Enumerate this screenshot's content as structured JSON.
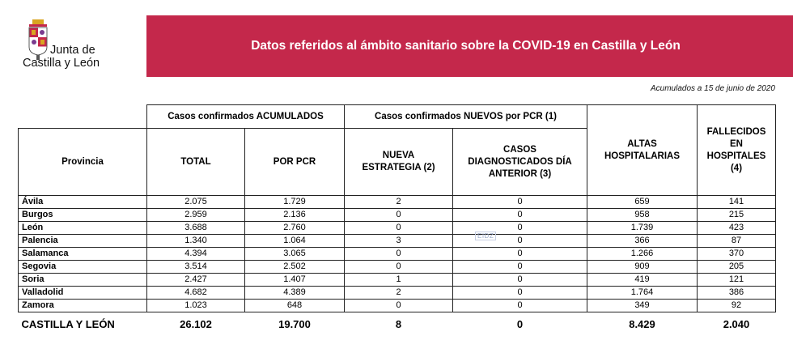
{
  "header": {
    "logo_text_line1": "Junta de",
    "logo_text_line2": "Castilla y León",
    "title": "Datos referidos al ámbito sanitario sobre la COVID-19 en Castilla y León",
    "note": "Acumulados a 15 de junio de 2020"
  },
  "table": {
    "group_headers": {
      "acumulados": "Casos confirmados ACUMULADOS",
      "nuevos": "Casos confirmados NUEVOS por PCR (1)"
    },
    "columns": {
      "provincia": "Provincia",
      "total": "TOTAL",
      "por_pcr": "POR PCR",
      "nueva_estrategia": "NUEVA ESTRATEGIA (2)",
      "casos_diag": "CASOS DIAGNOSTICADOS DÍA ANTERIOR (3)",
      "altas": "ALTAS HOSPITALARIAS",
      "fallecidos": "FALLECIDOS EN HOSPITALES (4)"
    },
    "rows": [
      {
        "provincia": "Ávila",
        "total": "2.075",
        "por_pcr": "1.729",
        "nueva": "2",
        "diag": "0",
        "altas": "659",
        "fallecidos": "141"
      },
      {
        "provincia": "Burgos",
        "total": "2.959",
        "por_pcr": "2.136",
        "nueva": "0",
        "diag": "0",
        "altas": "958",
        "fallecidos": "215"
      },
      {
        "provincia": "León",
        "total": "3.688",
        "por_pcr": "2.760",
        "nueva": "0",
        "diag": "0",
        "altas": "1.739",
        "fallecidos": "423"
      },
      {
        "provincia": "Palencia",
        "total": "1.340",
        "por_pcr": "1.064",
        "nueva": "3",
        "diag": "0",
        "altas": "366",
        "fallecidos": "87"
      },
      {
        "provincia": "Salamanca",
        "total": "4.394",
        "por_pcr": "3.065",
        "nueva": "0",
        "diag": "0",
        "altas": "1.266",
        "fallecidos": "370"
      },
      {
        "provincia": "Segovia",
        "total": "3.514",
        "por_pcr": "2.502",
        "nueva": "0",
        "diag": "0",
        "altas": "909",
        "fallecidos": "205"
      },
      {
        "provincia": "Soria",
        "total": "2.427",
        "por_pcr": "1.407",
        "nueva": "1",
        "diag": "0",
        "altas": "419",
        "fallecidos": "121"
      },
      {
        "provincia": "Valladolid",
        "total": "4.682",
        "por_pcr": "4.389",
        "nueva": "2",
        "diag": "0",
        "altas": "1.764",
        "fallecidos": "386"
      },
      {
        "provincia": "Zamora",
        "total": "1.023",
        "por_pcr": "648",
        "nueva": "0",
        "diag": "0",
        "altas": "349",
        "fallecidos": "92"
      }
    ],
    "total_row": {
      "provincia": "CASTILLA Y LEÓN",
      "total": "26.102",
      "por_pcr": "19.700",
      "nueva": "8",
      "diag": "0",
      "altas": "8.429",
      "fallecidos": "2.040"
    }
  },
  "watermark": "EIDZ",
  "colors": {
    "banner": "#c4284b",
    "shield_red": "#c4284b",
    "shield_gold": "#d9a521"
  }
}
